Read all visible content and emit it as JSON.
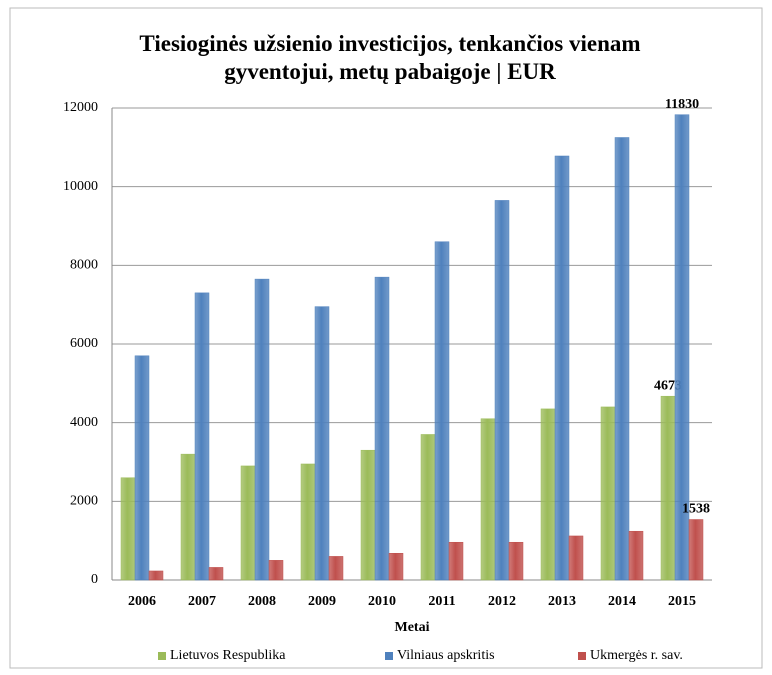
{
  "chart_data": {
    "type": "bar",
    "title": "Tiesioginės užsienio investicijos, tenkančios vienam gyventojui, metų pabaigoje | EUR",
    "xlabel": "Metai",
    "categories": [
      "2006",
      "2007",
      "2008",
      "2009",
      "2010",
      "2011",
      "2012",
      "2013",
      "2014",
      "2015"
    ],
    "series": [
      {
        "name": "Lietuvos Respublika",
        "color": "#9bbb59",
        "values": [
          2600,
          3200,
          2900,
          2950,
          3300,
          3700,
          4100,
          4350,
          4400,
          4673
        ],
        "value_labels": [
          null,
          null,
          null,
          null,
          null,
          null,
          null,
          null,
          null,
          "4673"
        ]
      },
      {
        "name": "Vilniaus apskritis",
        "color": "#4f81bd",
        "values": [
          5700,
          7300,
          7650,
          6950,
          7700,
          8600,
          9650,
          10780,
          11250,
          11830
        ],
        "value_labels": [
          null,
          null,
          null,
          null,
          null,
          null,
          null,
          null,
          null,
          "11830"
        ]
      },
      {
        "name": "Ukmergės r. sav.",
        "color": "#c0504d",
        "values": [
          230,
          320,
          500,
          600,
          680,
          960,
          960,
          1120,
          1240,
          1538
        ],
        "value_labels": [
          null,
          null,
          null,
          null,
          null,
          null,
          null,
          null,
          null,
          "1538"
        ]
      }
    ],
    "ylim": [
      0,
      12000
    ],
    "yticks": [
      0,
      2000,
      4000,
      6000,
      8000,
      10000,
      12000
    ],
    "grid": true,
    "legend": "bottom"
  }
}
